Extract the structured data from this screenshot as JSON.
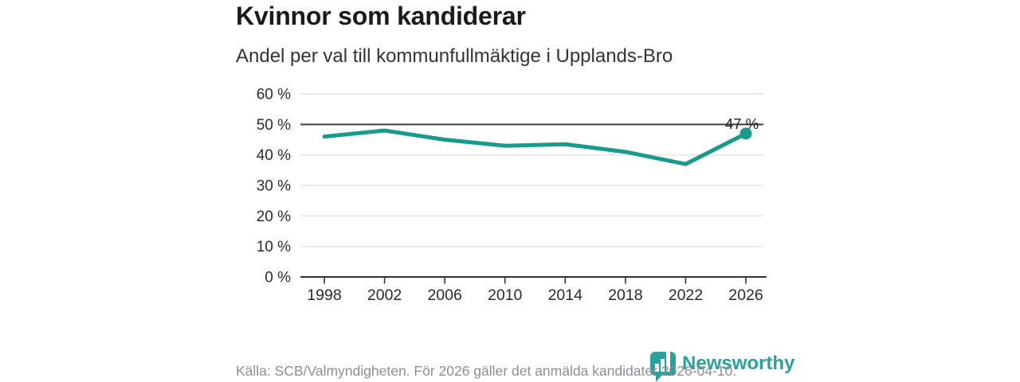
{
  "chart_data": {
    "type": "line",
    "title": "Kvinnor som kandiderar",
    "subtitle": "Andel per val till kommunfullmäktige i Upplands-Bro",
    "categories": [
      "1998",
      "2002",
      "2006",
      "2010",
      "2014",
      "2018",
      "2022",
      "2026"
    ],
    "values": [
      46,
      48,
      45,
      43,
      43.5,
      41,
      37,
      47
    ],
    "unit": "%",
    "ylim": [
      0,
      60
    ],
    "y_ticks": [
      {
        "value": 0,
        "label": "0 %"
      },
      {
        "value": 10,
        "label": "10 %"
      },
      {
        "value": 20,
        "label": "20 %"
      },
      {
        "value": 30,
        "label": "30 %"
      },
      {
        "value": 40,
        "label": "40 %"
      },
      {
        "value": 50,
        "label": "50 %"
      },
      {
        "value": 60,
        "label": "60 %"
      }
    ],
    "reference_line": 50,
    "end_label": "47 %",
    "grid": true,
    "legend": "none",
    "line_color": "#189a8d",
    "marker_color": "#189a8d",
    "axis_color": "#333333",
    "gridline_color": "#e4e4e4",
    "reference_line_color": "#3d3d3d",
    "tick_label_color": "#2b2b2b",
    "end_label_color": "#1f1f1f"
  },
  "footer": {
    "source": "Källa: SCB/Valmyndigheten. För 2026 gäller det anmälda kandidater 2026-04-10."
  },
  "logo": {
    "name": "Newsworthy",
    "color": "#29a29b",
    "icon": "newsworthy-chart-bubble-icon"
  }
}
